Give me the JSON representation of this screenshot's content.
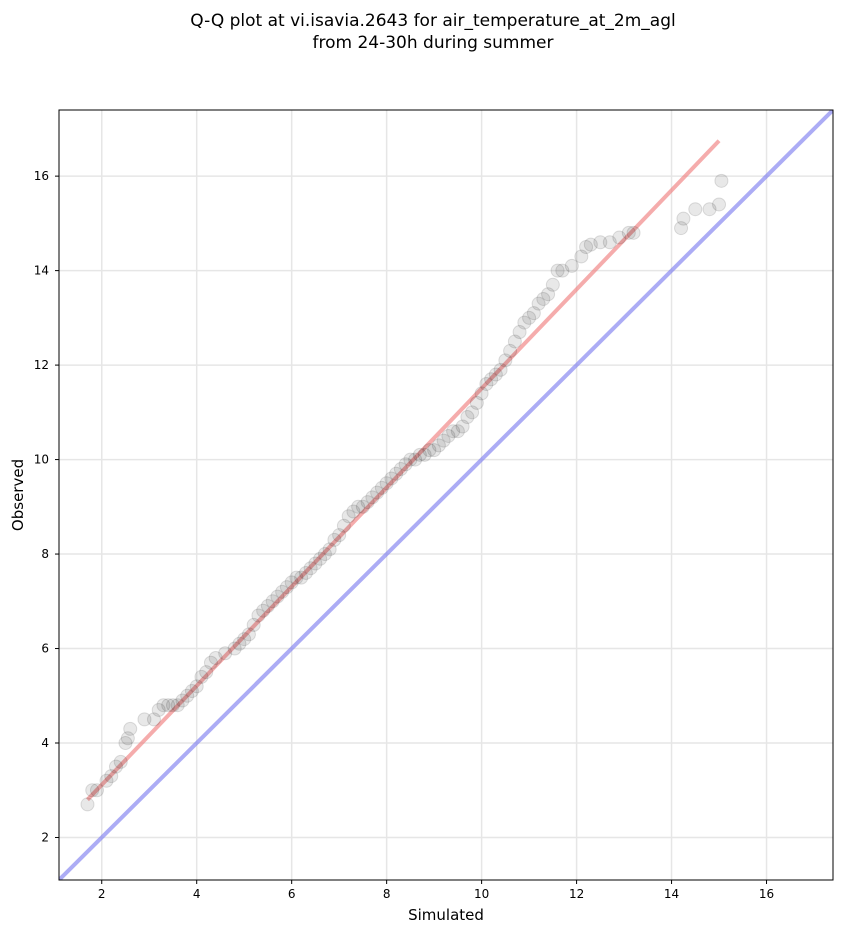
{
  "chart_data": {
    "type": "scatter",
    "title_line1": "Q-Q plot at vi.isavia.2643 for air_temperature_at_2m_agl",
    "title_line2": "from 24-30h during summer",
    "xlabel": "Simulated",
    "ylabel": "Observed",
    "xlim": [
      1.1,
      17.4
    ],
    "ylim": [
      1.1,
      17.4
    ],
    "xticks": [
      "2",
      "4",
      "6",
      "8",
      "10",
      "12",
      "14",
      "16"
    ],
    "yticks": [
      "2",
      "4",
      "6",
      "8",
      "10",
      "12",
      "14",
      "16"
    ],
    "grid": true,
    "colors": {
      "points": "#000000",
      "fit_line": "#f08080",
      "identity_line": "#8080f0",
      "grid": "#e6e6e6"
    },
    "series": [
      {
        "type": "scatter",
        "points": [
          [
            1.7,
            2.7
          ],
          [
            1.8,
            3.0
          ],
          [
            1.9,
            3.0
          ],
          [
            2.1,
            3.2
          ],
          [
            2.2,
            3.3
          ],
          [
            2.3,
            3.5
          ],
          [
            2.4,
            3.6
          ],
          [
            2.5,
            4.0
          ],
          [
            2.55,
            4.1
          ],
          [
            2.6,
            4.3
          ],
          [
            2.9,
            4.5
          ],
          [
            3.1,
            4.5
          ],
          [
            3.2,
            4.7
          ],
          [
            3.3,
            4.8
          ],
          [
            3.4,
            4.8
          ],
          [
            3.5,
            4.8
          ],
          [
            3.6,
            4.8
          ],
          [
            3.7,
            4.9
          ],
          [
            3.8,
            5.0
          ],
          [
            3.9,
            5.1
          ],
          [
            4.0,
            5.2
          ],
          [
            4.1,
            5.4
          ],
          [
            4.2,
            5.5
          ],
          [
            4.3,
            5.7
          ],
          [
            4.4,
            5.8
          ],
          [
            4.6,
            5.9
          ],
          [
            4.8,
            6.0
          ],
          [
            4.9,
            6.1
          ],
          [
            5.0,
            6.2
          ],
          [
            5.1,
            6.3
          ],
          [
            5.2,
            6.5
          ],
          [
            5.3,
            6.7
          ],
          [
            5.4,
            6.8
          ],
          [
            5.5,
            6.9
          ],
          [
            5.6,
            7.0
          ],
          [
            5.7,
            7.1
          ],
          [
            5.8,
            7.2
          ],
          [
            5.9,
            7.3
          ],
          [
            6.0,
            7.4
          ],
          [
            6.1,
            7.5
          ],
          [
            6.2,
            7.5
          ],
          [
            6.3,
            7.6
          ],
          [
            6.4,
            7.7
          ],
          [
            6.5,
            7.8
          ],
          [
            6.6,
            7.9
          ],
          [
            6.7,
            8.0
          ],
          [
            6.8,
            8.1
          ],
          [
            6.9,
            8.3
          ],
          [
            7.0,
            8.4
          ],
          [
            7.1,
            8.6
          ],
          [
            7.2,
            8.8
          ],
          [
            7.3,
            8.9
          ],
          [
            7.4,
            9.0
          ],
          [
            7.5,
            9.0
          ],
          [
            7.6,
            9.1
          ],
          [
            7.7,
            9.2
          ],
          [
            7.8,
            9.3
          ],
          [
            7.9,
            9.4
          ],
          [
            8.0,
            9.5
          ],
          [
            8.1,
            9.6
          ],
          [
            8.2,
            9.7
          ],
          [
            8.3,
            9.8
          ],
          [
            8.4,
            9.9
          ],
          [
            8.5,
            10.0
          ],
          [
            8.6,
            10.0
          ],
          [
            8.7,
            10.1
          ],
          [
            8.8,
            10.1
          ],
          [
            8.9,
            10.2
          ],
          [
            9.0,
            10.2
          ],
          [
            9.1,
            10.3
          ],
          [
            9.2,
            10.4
          ],
          [
            9.3,
            10.5
          ],
          [
            9.4,
            10.6
          ],
          [
            9.5,
            10.6
          ],
          [
            9.6,
            10.7
          ],
          [
            9.7,
            10.9
          ],
          [
            9.8,
            11.0
          ],
          [
            9.9,
            11.2
          ],
          [
            10.0,
            11.4
          ],
          [
            10.1,
            11.6
          ],
          [
            10.2,
            11.7
          ],
          [
            10.3,
            11.8
          ],
          [
            10.4,
            11.9
          ],
          [
            10.5,
            12.1
          ],
          [
            10.6,
            12.3
          ],
          [
            10.7,
            12.5
          ],
          [
            10.8,
            12.7
          ],
          [
            10.9,
            12.9
          ],
          [
            11.0,
            13.0
          ],
          [
            11.1,
            13.1
          ],
          [
            11.2,
            13.3
          ],
          [
            11.3,
            13.4
          ],
          [
            11.4,
            13.5
          ],
          [
            11.5,
            13.7
          ],
          [
            11.6,
            14.0
          ],
          [
            11.7,
            14.0
          ],
          [
            11.9,
            14.1
          ],
          [
            12.1,
            14.3
          ],
          [
            12.2,
            14.5
          ],
          [
            12.3,
            14.55
          ],
          [
            12.5,
            14.6
          ],
          [
            12.7,
            14.6
          ],
          [
            12.9,
            14.7
          ],
          [
            13.1,
            14.8
          ],
          [
            13.2,
            14.8
          ],
          [
            14.2,
            14.9
          ],
          [
            14.25,
            15.1
          ],
          [
            14.5,
            15.3
          ],
          [
            14.8,
            15.3
          ],
          [
            15.0,
            15.4
          ],
          [
            15.05,
            15.9
          ]
        ]
      },
      {
        "type": "line",
        "role": "fit",
        "points": [
          [
            1.7,
            2.8
          ],
          [
            15.0,
            16.75
          ]
        ]
      },
      {
        "type": "line",
        "role": "identity",
        "points": [
          [
            1.1,
            1.1
          ],
          [
            17.4,
            17.4
          ]
        ]
      }
    ]
  }
}
